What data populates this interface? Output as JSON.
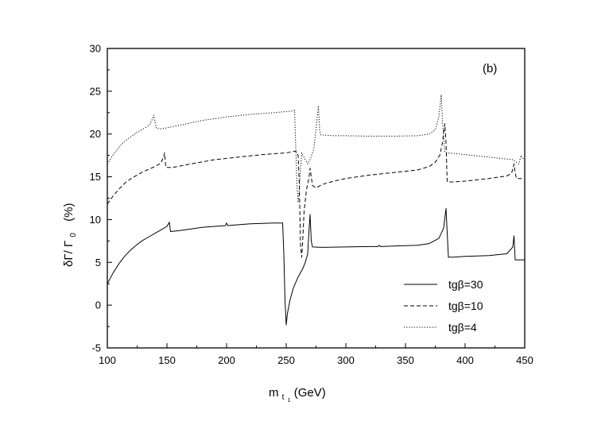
{
  "chart_data": {
    "type": "line",
    "panel_label": "(b)",
    "xlabel": {
      "main": "m",
      "sub": "t",
      "subsub": "1",
      "units": " (GeV)"
    },
    "ylabel": {
      "a": "δΓ/ Γ",
      "sub": "0",
      "units": "(%)"
    },
    "xlim": [
      100,
      450
    ],
    "ylim": [
      -5,
      30
    ],
    "xticks": [
      "100",
      "150",
      "200",
      "250",
      "300",
      "350",
      "400",
      "450"
    ],
    "yticks": [
      "-5",
      "0",
      "5",
      "10",
      "15",
      "20",
      "25",
      "30"
    ],
    "grid": false,
    "legend_position": "bottom-right",
    "series": [
      {
        "name": "tgβ=30",
        "style": "solid",
        "points": [
          [
            100,
            2.5
          ],
          [
            105,
            3.8
          ],
          [
            110,
            4.9
          ],
          [
            115,
            5.8
          ],
          [
            120,
            6.5
          ],
          [
            125,
            7.1
          ],
          [
            130,
            7.6
          ],
          [
            135,
            8.0
          ],
          [
            140,
            8.4
          ],
          [
            145,
            8.8
          ],
          [
            150,
            9.2
          ],
          [
            152,
            9.7
          ],
          [
            153,
            8.6
          ],
          [
            160,
            8.7
          ],
          [
            170,
            8.9
          ],
          [
            180,
            9.1
          ],
          [
            190,
            9.2
          ],
          [
            199,
            9.3
          ],
          [
            200,
            9.6
          ],
          [
            201,
            9.3
          ],
          [
            210,
            9.4
          ],
          [
            220,
            9.5
          ],
          [
            230,
            9.55
          ],
          [
            240,
            9.6
          ],
          [
            247,
            9.6
          ],
          [
            248,
            6.0
          ],
          [
            249,
            0.5
          ],
          [
            250,
            -2.3
          ],
          [
            251,
            -1.0
          ],
          [
            253,
            0.5
          ],
          [
            256,
            2.0
          ],
          [
            260,
            3.3
          ],
          [
            264,
            4.3
          ],
          [
            266,
            5.0
          ],
          [
            268,
            6.0
          ],
          [
            269,
            8.5
          ],
          [
            270,
            10.6
          ],
          [
            271,
            7.5
          ],
          [
            272,
            6.8
          ],
          [
            280,
            6.75
          ],
          [
            300,
            6.8
          ],
          [
            320,
            6.85
          ],
          [
            327,
            6.85
          ],
          [
            328,
            7.0
          ],
          [
            329,
            6.85
          ],
          [
            340,
            6.9
          ],
          [
            360,
            7.0
          ],
          [
            370,
            7.2
          ],
          [
            378,
            7.8
          ],
          [
            382,
            9.0
          ],
          [
            384,
            11.3
          ],
          [
            386,
            5.6
          ],
          [
            390,
            5.6
          ],
          [
            400,
            5.7
          ],
          [
            420,
            5.8
          ],
          [
            435,
            6.0
          ],
          [
            440,
            6.8
          ],
          [
            441,
            8.1
          ],
          [
            442,
            5.3
          ],
          [
            450,
            5.3
          ]
        ]
      },
      {
        "name": "tgβ=10",
        "style": "dashed",
        "points": [
          [
            100,
            11.8
          ],
          [
            105,
            12.8
          ],
          [
            110,
            13.6
          ],
          [
            115,
            14.3
          ],
          [
            120,
            14.8
          ],
          [
            125,
            15.2
          ],
          [
            130,
            15.6
          ],
          [
            135,
            15.9
          ],
          [
            140,
            16.2
          ],
          [
            145,
            16.6
          ],
          [
            147,
            17.3
          ],
          [
            148,
            17.8
          ],
          [
            149,
            16.1
          ],
          [
            155,
            16.1
          ],
          [
            170,
            16.5
          ],
          [
            190,
            17.0
          ],
          [
            210,
            17.3
          ],
          [
            230,
            17.6
          ],
          [
            250,
            17.8
          ],
          [
            258,
            18.0
          ],
          [
            260,
            17.5
          ],
          [
            261,
            14.0
          ],
          [
            262,
            7.0
          ],
          [
            263,
            5.6
          ],
          [
            264,
            8.0
          ],
          [
            265,
            11.0
          ],
          [
            267,
            13.5
          ],
          [
            269,
            14.8
          ],
          [
            270,
            16.0
          ],
          [
            271,
            15.0
          ],
          [
            272,
            14.0
          ],
          [
            275,
            13.7
          ],
          [
            280,
            14.1
          ],
          [
            290,
            14.5
          ],
          [
            300,
            14.8
          ],
          [
            320,
            15.2
          ],
          [
            340,
            15.5
          ],
          [
            360,
            15.8
          ],
          [
            370,
            16.2
          ],
          [
            375,
            16.7
          ],
          [
            379,
            17.6
          ],
          [
            381,
            19.0
          ],
          [
            383,
            21.2
          ],
          [
            384,
            19.0
          ],
          [
            385,
            14.4
          ],
          [
            390,
            14.4
          ],
          [
            400,
            14.5
          ],
          [
            420,
            14.8
          ],
          [
            435,
            15.1
          ],
          [
            439,
            15.4
          ],
          [
            441,
            16.5
          ],
          [
            442,
            15.5
          ],
          [
            443,
            14.8
          ],
          [
            450,
            14.8
          ]
        ]
      },
      {
        "name": "tgβ=4",
        "style": "dotted",
        "points": [
          [
            100,
            16.5
          ],
          [
            105,
            17.6
          ],
          [
            110,
            18.5
          ],
          [
            115,
            19.2
          ],
          [
            120,
            19.7
          ],
          [
            125,
            20.2
          ],
          [
            130,
            20.6
          ],
          [
            135,
            21.0
          ],
          [
            137,
            21.5
          ],
          [
            139,
            22.2
          ],
          [
            141,
            20.7
          ],
          [
            145,
            20.6
          ],
          [
            160,
            21.0
          ],
          [
            180,
            21.6
          ],
          [
            200,
            22.0
          ],
          [
            220,
            22.3
          ],
          [
            240,
            22.5
          ],
          [
            256,
            22.7
          ],
          [
            257,
            22.8
          ],
          [
            258,
            18.5
          ],
          [
            259,
            14.0
          ],
          [
            260,
            12.0
          ],
          [
            261,
            13.5
          ],
          [
            262,
            16.0
          ],
          [
            263,
            17.8
          ],
          [
            266,
            17.0
          ],
          [
            268,
            16.5
          ],
          [
            270,
            17.0
          ],
          [
            273,
            18.2
          ],
          [
            275,
            20.5
          ],
          [
            277,
            23.3
          ],
          [
            278,
            20.5
          ],
          [
            279,
            19.9
          ],
          [
            290,
            19.8
          ],
          [
            300,
            19.8
          ],
          [
            320,
            19.75
          ],
          [
            340,
            19.75
          ],
          [
            360,
            19.8
          ],
          [
            370,
            20.0
          ],
          [
            375,
            20.5
          ],
          [
            378,
            22.0
          ],
          [
            380,
            24.6
          ],
          [
            381,
            21.5
          ],
          [
            383,
            17.9
          ],
          [
            385,
            17.8
          ],
          [
            400,
            17.6
          ],
          [
            420,
            17.3
          ],
          [
            440,
            17.0
          ],
          [
            445,
            16.5
          ],
          [
            447,
            17.5
          ],
          [
            448,
            17.2
          ],
          [
            450,
            17.0
          ]
        ]
      }
    ]
  }
}
